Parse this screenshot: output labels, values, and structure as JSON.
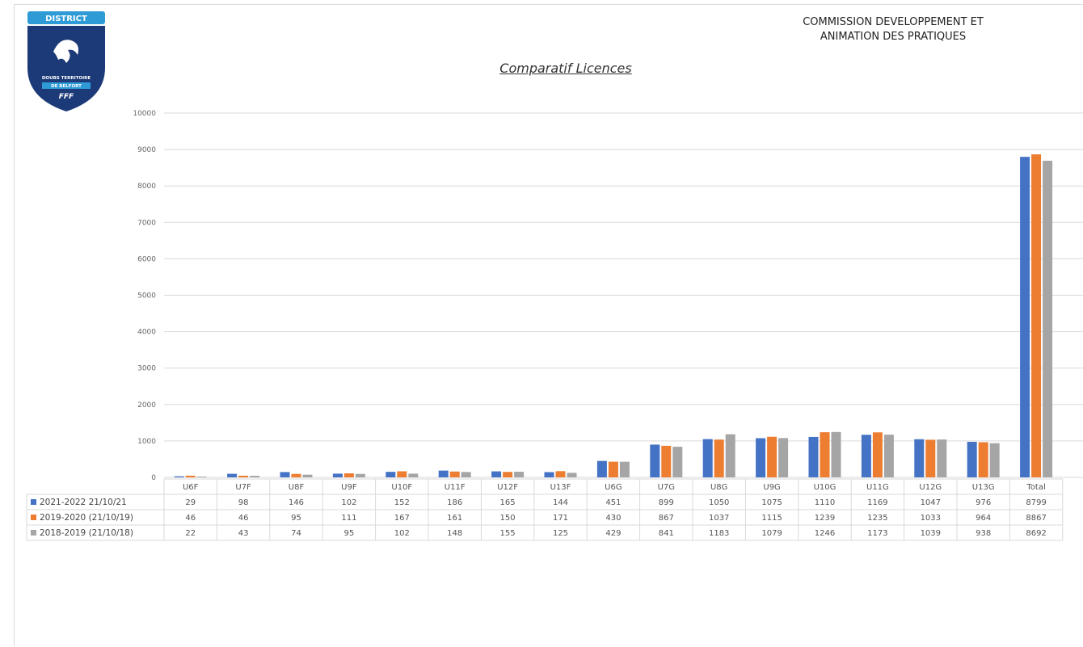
{
  "header": {
    "logo_text_top": "DISTRICT",
    "logo_text_mid1": "DOUBS TERRITOIRE",
    "logo_text_mid2": "DE BELFORT",
    "logo_text_bottom": "FFF",
    "commission_line1": "COMMISSION DEVELOPPEMENT ET",
    "commission_line2": "ANIMATION DES PRATIQUES"
  },
  "colors": {
    "series1": "#4472c4",
    "series2": "#ed7d31",
    "series3": "#a5a5a5",
    "logo_blue": "#1c3a78",
    "logo_light": "#2f9bd6"
  },
  "chart_data": {
    "type": "bar",
    "title": "Comparatif  Licences",
    "ylim": [
      0,
      10000
    ],
    "yticks": [
      0,
      1000,
      2000,
      3000,
      4000,
      5000,
      6000,
      7000,
      8000,
      9000,
      10000
    ],
    "grid": true,
    "legend": "data-table-left",
    "categories": [
      "U6F",
      "U7F",
      "U8F",
      "U9F",
      "U10F",
      "U11F",
      "U12F",
      "U13F",
      "U6G",
      "U7G",
      "U8G",
      "U9G",
      "U10G",
      "U11G",
      "U12G",
      "U13G",
      "Total"
    ],
    "series": [
      {
        "name": "2021-2022 21/10/21",
        "values": [
          29,
          98,
          146,
          102,
          152,
          186,
          165,
          144,
          451,
          899,
          1050,
          1075,
          1110,
          1169,
          1047,
          976,
          8799
        ]
      },
      {
        "name": "2019-2020 (21/10/19)",
        "values": [
          46,
          46,
          95,
          111,
          167,
          161,
          150,
          171,
          430,
          867,
          1037,
          1115,
          1239,
          1235,
          1033,
          964,
          8867
        ]
      },
      {
        "name": "2018-2019 (21/10/18)",
        "values": [
          22,
          43,
          74,
          95,
          102,
          148,
          155,
          125,
          429,
          841,
          1183,
          1079,
          1246,
          1173,
          1039,
          938,
          8692
        ]
      }
    ]
  }
}
